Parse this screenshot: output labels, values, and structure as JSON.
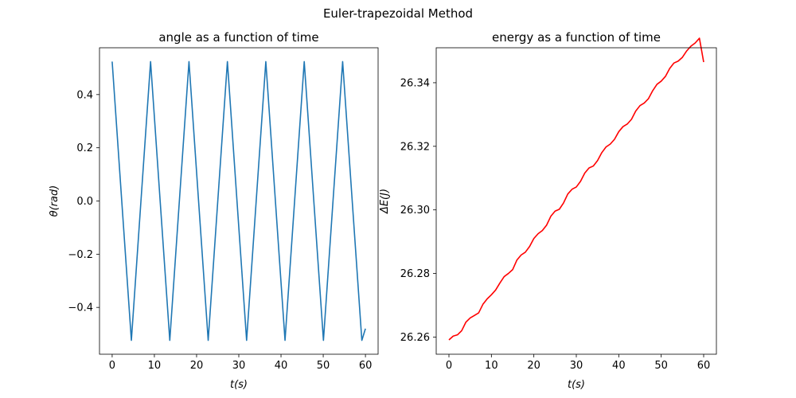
{
  "figure": {
    "suptitle": "Euler-trapezoidal Method"
  },
  "chart_data": [
    {
      "type": "line",
      "title": "angle as a function of time",
      "xlabel": "t(s)",
      "ylabel": "θ(rad)",
      "xlim": [
        -3,
        63
      ],
      "ylim": [
        -0.576,
        0.576
      ],
      "x_ticks": [
        0,
        10,
        20,
        30,
        40,
        50,
        60
      ],
      "x_tick_labels": [
        "0",
        "10",
        "20",
        "30",
        "40",
        "50",
        "60"
      ],
      "y_ticks": [
        -0.4,
        -0.2,
        0.0,
        0.2,
        0.4
      ],
      "y_tick_labels": [
        "−0.4",
        "−0.2",
        "0.0",
        "0.2",
        "0.4"
      ],
      "grid": false,
      "series": [
        {
          "color": "#1f77b4",
          "x": [
            0,
            2.27,
            4.55,
            6.82,
            9.1,
            11.37,
            13.65,
            15.92,
            18.2,
            20.47,
            22.75,
            25.02,
            27.3,
            29.57,
            31.85,
            34.12,
            36.4,
            38.67,
            40.95,
            43.22,
            45.5,
            47.77,
            50.05,
            52.32,
            54.6,
            56.87,
            59.15,
            60
          ],
          "y": [
            0.524,
            0.0,
            -0.524,
            0.0,
            0.524,
            0.0,
            -0.524,
            0.0,
            0.524,
            0.0,
            -0.524,
            0.0,
            0.524,
            0.0,
            -0.524,
            0.0,
            0.524,
            0.0,
            -0.524,
            0.0,
            0.524,
            0.0,
            -0.524,
            0.0,
            0.524,
            0.0,
            -0.524,
            -0.48
          ]
        }
      ]
    },
    {
      "type": "line",
      "title": "energy as a function of time",
      "xlabel": "t(s)",
      "ylabel": "ΔE(J)",
      "xlim": [
        -3,
        63
      ],
      "ylim": [
        26.2546,
        26.351
      ],
      "x_ticks": [
        0,
        10,
        20,
        30,
        40,
        50,
        60
      ],
      "x_tick_labels": [
        "0",
        "10",
        "20",
        "30",
        "40",
        "50",
        "60"
      ],
      "y_ticks": [
        26.26,
        26.28,
        26.3,
        26.32,
        26.34
      ],
      "y_tick_labels": [
        "26.26",
        "26.28",
        "26.30",
        "26.32",
        "26.34"
      ],
      "grid": false,
      "series": [
        {
          "color": "#ff0000",
          "x": [
            0,
            1,
            2,
            3,
            4,
            5,
            6,
            7,
            8,
            9,
            10,
            11,
            12,
            13,
            14,
            15,
            16,
            17,
            18,
            19,
            20,
            21,
            22,
            23,
            24,
            25,
            26,
            27,
            28,
            29,
            30,
            31,
            32,
            33,
            34,
            35,
            36,
            37,
            38,
            39,
            40,
            41,
            42,
            43,
            44,
            45,
            46,
            47,
            48,
            49,
            50,
            51,
            52,
            53,
            54,
            55,
            56,
            57,
            58,
            59,
            60
          ],
          "y": [
            26.2591,
            26.2603,
            26.2607,
            26.262,
            26.2647,
            26.266,
            26.2668,
            26.2676,
            26.2703,
            26.272,
            26.2733,
            26.2748,
            26.277,
            26.279,
            26.28,
            26.2812,
            26.2842,
            26.2858,
            26.2867,
            26.2885,
            26.291,
            26.2925,
            26.2935,
            26.2952,
            26.298,
            26.2996,
            26.3002,
            26.3022,
            26.305,
            26.3065,
            26.3072,
            26.309,
            26.3116,
            26.3132,
            26.3138,
            26.3155,
            26.318,
            26.3198,
            26.3207,
            26.3222,
            26.3246,
            26.3262,
            26.327,
            26.3285,
            26.3311,
            26.3328,
            26.3336,
            26.335,
            26.3375,
            26.3395,
            26.3405,
            26.342,
            26.3445,
            26.3462,
            26.3468,
            26.348,
            26.35,
            26.3515,
            26.3525,
            26.354,
            26.3465
          ]
        }
      ]
    }
  ]
}
